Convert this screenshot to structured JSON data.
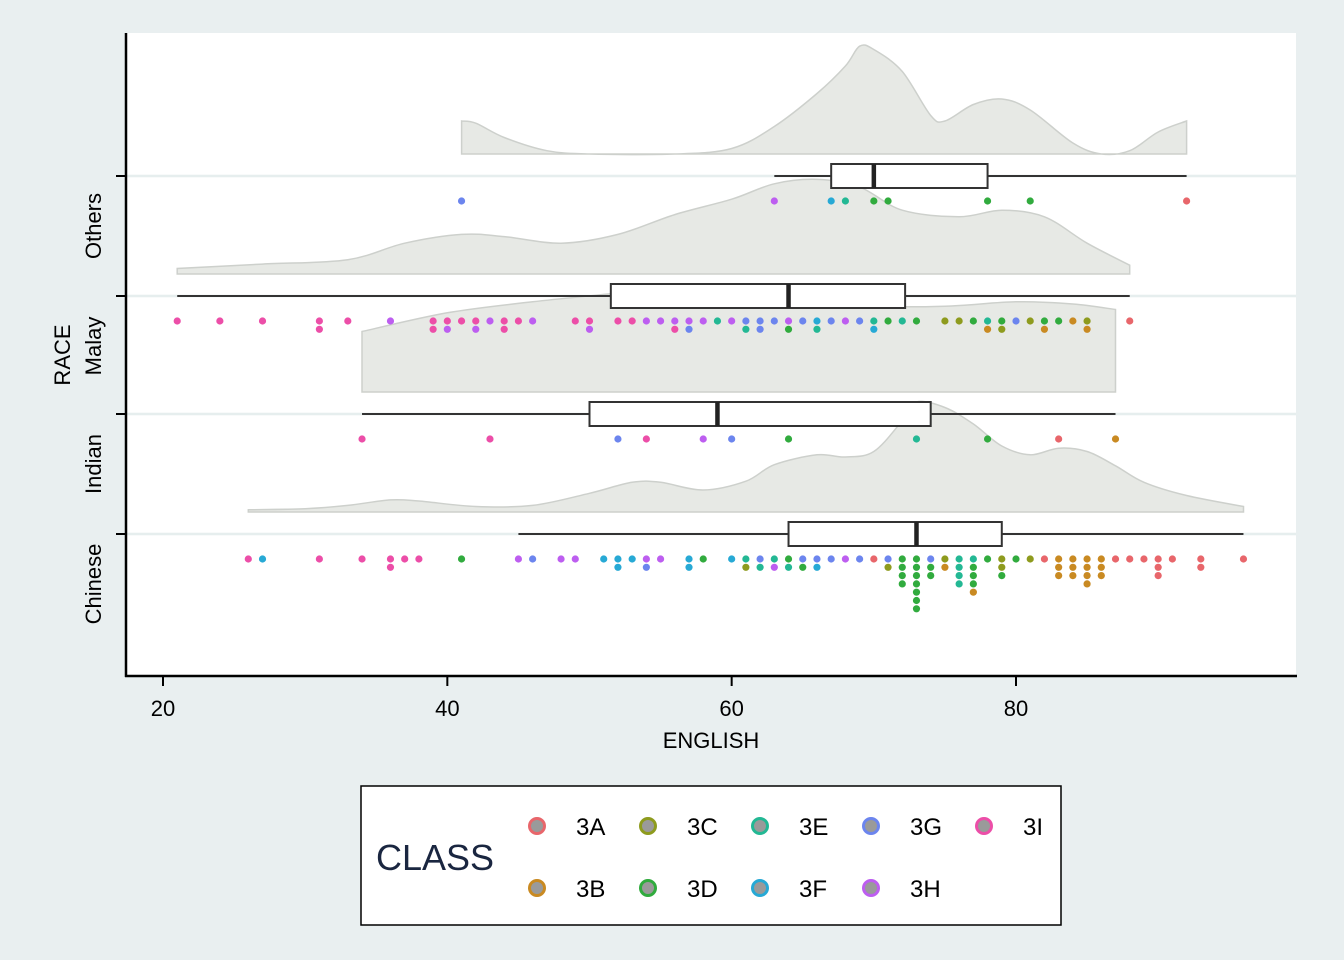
{
  "chart_data": {
    "type": "raincloud",
    "xlabel": "ENGLISH",
    "ylabel": "RACE",
    "xlim": [
      17.2,
      99.6
    ],
    "xticks": [
      20,
      40,
      60,
      80
    ],
    "categories": [
      "Chinese",
      "Indian",
      "Malay",
      "Others"
    ],
    "grid": "horizontal",
    "legend": {
      "title": "CLASS",
      "position": "bottom",
      "entries": [
        "3A",
        "3B",
        "3C",
        "3D",
        "3E",
        "3F",
        "3G",
        "3H",
        "3I"
      ]
    },
    "class_colors": {
      "3A": "#e8666b",
      "3B": "#c98a22",
      "3C": "#8e9b1e",
      "3D": "#31ab3e",
      "3E": "#23b894",
      "3F": "#27a9d5",
      "3G": "#6c85ee",
      "3H": "#bd5ef0",
      "3I": "#ec4ea8"
    },
    "groups": [
      {
        "name": "Chinese",
        "box": {
          "min": 45,
          "q1": 64,
          "median": 73,
          "q3": 79,
          "max": 96
        },
        "density_range": [
          26,
          96
        ],
        "density": [
          [
            26,
            0.02
          ],
          [
            30,
            0.03
          ],
          [
            33,
            0.06
          ],
          [
            36,
            0.11
          ],
          [
            38,
            0.1
          ],
          [
            42,
            0.05
          ],
          [
            46,
            0.06
          ],
          [
            50,
            0.17
          ],
          [
            53,
            0.27
          ],
          [
            55,
            0.27
          ],
          [
            58,
            0.2
          ],
          [
            61,
            0.28
          ],
          [
            63,
            0.43
          ],
          [
            66,
            0.52
          ],
          [
            68,
            0.5
          ],
          [
            70,
            0.55
          ],
          [
            72,
            0.83
          ],
          [
            73,
            1.0
          ],
          [
            75,
            0.95
          ],
          [
            77,
            0.8
          ],
          [
            79,
            0.6
          ],
          [
            81,
            0.52
          ],
          [
            83,
            0.58
          ],
          [
            85,
            0.55
          ],
          [
            87,
            0.42
          ],
          [
            89,
            0.27
          ],
          [
            92,
            0.15
          ],
          [
            96,
            0.05
          ]
        ],
        "points": [
          [
            26,
            "3I"
          ],
          [
            27,
            "3F"
          ],
          [
            31,
            "3I"
          ],
          [
            34,
            "3I"
          ],
          [
            36,
            "3I"
          ],
          [
            36,
            "3I"
          ],
          [
            37,
            "3I"
          ],
          [
            38,
            "3I"
          ],
          [
            41,
            "3D"
          ],
          [
            45,
            "3H"
          ],
          [
            46,
            "3G"
          ],
          [
            48,
            "3H"
          ],
          [
            49,
            "3H"
          ],
          [
            51,
            "3F"
          ],
          [
            52,
            "3F"
          ],
          [
            52,
            "3F"
          ],
          [
            53,
            "3F"
          ],
          [
            54,
            "3H"
          ],
          [
            54,
            "3G"
          ],
          [
            55,
            "3H"
          ],
          [
            57,
            "3F"
          ],
          [
            57,
            "3F"
          ],
          [
            58,
            "3D"
          ],
          [
            60,
            "3F"
          ],
          [
            61,
            "3E"
          ],
          [
            61,
            "3C"
          ],
          [
            62,
            "3G"
          ],
          [
            62,
            "3E"
          ],
          [
            63,
            "3E"
          ],
          [
            63,
            "3H"
          ],
          [
            64,
            "3D"
          ],
          [
            64,
            "3E"
          ],
          [
            65,
            "3G"
          ],
          [
            65,
            "3D"
          ],
          [
            66,
            "3G"
          ],
          [
            66,
            "3F"
          ],
          [
            67,
            "3G"
          ],
          [
            68,
            "3H"
          ],
          [
            69,
            "3G"
          ],
          [
            70,
            "3A"
          ],
          [
            71,
            "3G"
          ],
          [
            71,
            "3C"
          ],
          [
            72,
            "3D"
          ],
          [
            72,
            "3D"
          ],
          [
            72,
            "3D"
          ],
          [
            72,
            "3D"
          ],
          [
            73,
            "3D"
          ],
          [
            73,
            "3D"
          ],
          [
            73,
            "3D"
          ],
          [
            73,
            "3D"
          ],
          [
            73,
            "3D"
          ],
          [
            73,
            "3D"
          ],
          [
            73,
            "3D"
          ],
          [
            74,
            "3G"
          ],
          [
            74,
            "3D"
          ],
          [
            74,
            "3D"
          ],
          [
            75,
            "3C"
          ],
          [
            75,
            "3B"
          ],
          [
            76,
            "3E"
          ],
          [
            76,
            "3E"
          ],
          [
            76,
            "3E"
          ],
          [
            76,
            "3E"
          ],
          [
            77,
            "3E"
          ],
          [
            77,
            "3D"
          ],
          [
            77,
            "3D"
          ],
          [
            77,
            "3D"
          ],
          [
            77,
            "3B"
          ],
          [
            78,
            "3D"
          ],
          [
            79,
            "3C"
          ],
          [
            79,
            "3C"
          ],
          [
            79,
            "3D"
          ],
          [
            80,
            "3D"
          ],
          [
            81,
            "3C"
          ],
          [
            82,
            "3A"
          ],
          [
            83,
            "3B"
          ],
          [
            83,
            "3B"
          ],
          [
            83,
            "3B"
          ],
          [
            84,
            "3B"
          ],
          [
            84,
            "3B"
          ],
          [
            84,
            "3B"
          ],
          [
            85,
            "3B"
          ],
          [
            85,
            "3B"
          ],
          [
            85,
            "3B"
          ],
          [
            85,
            "3B"
          ],
          [
            86,
            "3B"
          ],
          [
            86,
            "3B"
          ],
          [
            86,
            "3B"
          ],
          [
            87,
            "3A"
          ],
          [
            88,
            "3A"
          ],
          [
            89,
            "3A"
          ],
          [
            90,
            "3A"
          ],
          [
            90,
            "3A"
          ],
          [
            90,
            "3A"
          ],
          [
            91,
            "3A"
          ],
          [
            93,
            "3A"
          ],
          [
            93,
            "3A"
          ],
          [
            96,
            "3A"
          ]
        ]
      },
      {
        "name": "Indian",
        "box": {
          "min": 34,
          "q1": 50,
          "median": 59,
          "q3": 74,
          "max": 87
        },
        "density_range": [
          34,
          87
        ],
        "density": [
          [
            34,
            0.55
          ],
          [
            40,
            0.72
          ],
          [
            46,
            0.82
          ],
          [
            52,
            0.9
          ],
          [
            57,
            0.97
          ],
          [
            60,
            0.93
          ],
          [
            65,
            0.83
          ],
          [
            70,
            0.78
          ],
          [
            75,
            0.78
          ],
          [
            80,
            0.82
          ],
          [
            84,
            0.8
          ],
          [
            87,
            0.75
          ]
        ],
        "points": [
          [
            34,
            "3I"
          ],
          [
            43,
            "3I"
          ],
          [
            52,
            "3G"
          ],
          [
            54,
            "3I"
          ],
          [
            58,
            "3H"
          ],
          [
            60,
            "3G"
          ],
          [
            64,
            "3D"
          ],
          [
            73,
            "3E"
          ],
          [
            78,
            "3D"
          ],
          [
            83,
            "3A"
          ],
          [
            87,
            "3B"
          ]
        ]
      },
      {
        "name": "Malay",
        "box": {
          "min": 21,
          "q1": 51.5,
          "median": 64,
          "q3": 72.2,
          "max": 88
        },
        "density_range": [
          21,
          88
        ],
        "density": [
          [
            21,
            0.05
          ],
          [
            27,
            0.09
          ],
          [
            33,
            0.13
          ],
          [
            37,
            0.28
          ],
          [
            41,
            0.36
          ],
          [
            44,
            0.34
          ],
          [
            48,
            0.28
          ],
          [
            52,
            0.36
          ],
          [
            56,
            0.54
          ],
          [
            60,
            0.68
          ],
          [
            63,
            0.82
          ],
          [
            66,
            0.86
          ],
          [
            69,
            0.79
          ],
          [
            72,
            0.58
          ],
          [
            76,
            0.52
          ],
          [
            79,
            0.58
          ],
          [
            82,
            0.52
          ],
          [
            85,
            0.28
          ],
          [
            88,
            0.08
          ]
        ],
        "points": [
          [
            21,
            "3I"
          ],
          [
            24,
            "3I"
          ],
          [
            27,
            "3I"
          ],
          [
            31,
            "3I"
          ],
          [
            31,
            "3I"
          ],
          [
            33,
            "3I"
          ],
          [
            36,
            "3H"
          ],
          [
            39,
            "3I"
          ],
          [
            39,
            "3I"
          ],
          [
            40,
            "3I"
          ],
          [
            40,
            "3H"
          ],
          [
            41,
            "3I"
          ],
          [
            42,
            "3I"
          ],
          [
            42,
            "3H"
          ],
          [
            43,
            "3H"
          ],
          [
            44,
            "3I"
          ],
          [
            44,
            "3I"
          ],
          [
            45,
            "3I"
          ],
          [
            46,
            "3H"
          ],
          [
            49,
            "3I"
          ],
          [
            50,
            "3I"
          ],
          [
            50,
            "3H"
          ],
          [
            52,
            "3I"
          ],
          [
            53,
            "3I"
          ],
          [
            54,
            "3H"
          ],
          [
            55,
            "3H"
          ],
          [
            56,
            "3H"
          ],
          [
            56,
            "3I"
          ],
          [
            57,
            "3H"
          ],
          [
            57,
            "3G"
          ],
          [
            58,
            "3H"
          ],
          [
            59,
            "3E"
          ],
          [
            60,
            "3H"
          ],
          [
            61,
            "3G"
          ],
          [
            61,
            "3E"
          ],
          [
            62,
            "3G"
          ],
          [
            62,
            "3G"
          ],
          [
            63,
            "3G"
          ],
          [
            64,
            "3H"
          ],
          [
            64,
            "3D"
          ],
          [
            65,
            "3G"
          ],
          [
            66,
            "3F"
          ],
          [
            66,
            "3E"
          ],
          [
            67,
            "3G"
          ],
          [
            68,
            "3H"
          ],
          [
            69,
            "3G"
          ],
          [
            70,
            "3E"
          ],
          [
            70,
            "3F"
          ],
          [
            71,
            "3D"
          ],
          [
            72,
            "3E"
          ],
          [
            73,
            "3D"
          ],
          [
            75,
            "3C"
          ],
          [
            76,
            "3C"
          ],
          [
            77,
            "3D"
          ],
          [
            78,
            "3E"
          ],
          [
            78,
            "3B"
          ],
          [
            79,
            "3D"
          ],
          [
            79,
            "3C"
          ],
          [
            80,
            "3G"
          ],
          [
            81,
            "3C"
          ],
          [
            82,
            "3D"
          ],
          [
            82,
            "3B"
          ],
          [
            83,
            "3D"
          ],
          [
            84,
            "3B"
          ],
          [
            85,
            "3C"
          ],
          [
            85,
            "3B"
          ],
          [
            88,
            "3A"
          ]
        ]
      },
      {
        "name": "Others",
        "box": {
          "min": 63,
          "q1": 67,
          "median": 70,
          "q3": 78,
          "max": 92
        },
        "density_range": [
          41,
          92
        ],
        "density": [
          [
            41,
            0.3
          ],
          [
            42,
            0.28
          ],
          [
            44,
            0.15
          ],
          [
            47,
            0.03
          ],
          [
            50,
            0.0
          ],
          [
            56,
            0.0
          ],
          [
            60,
            0.05
          ],
          [
            63,
            0.25
          ],
          [
            66,
            0.55
          ],
          [
            68,
            0.8
          ],
          [
            69,
            0.98
          ],
          [
            70,
            0.95
          ],
          [
            72,
            0.75
          ],
          [
            74,
            0.35
          ],
          [
            75,
            0.3
          ],
          [
            77,
            0.45
          ],
          [
            79,
            0.5
          ],
          [
            81,
            0.4
          ],
          [
            84,
            0.1
          ],
          [
            86,
            0.0
          ],
          [
            88,
            0.03
          ],
          [
            90,
            0.2
          ],
          [
            92,
            0.3
          ]
        ],
        "points": [
          [
            41,
            "3G"
          ],
          [
            63,
            "3H"
          ],
          [
            67,
            "3F"
          ],
          [
            68,
            "3E"
          ],
          [
            70,
            "3D"
          ],
          [
            71,
            "3D"
          ],
          [
            78,
            "3D"
          ],
          [
            81,
            "3D"
          ],
          [
            92,
            "3A"
          ]
        ]
      }
    ]
  }
}
